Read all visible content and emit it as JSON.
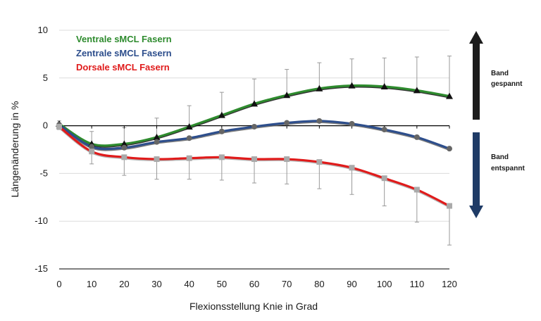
{
  "chart_data": {
    "type": "line",
    "xlabel": "Flexionsstellung Knie in Grad",
    "ylabel": "Längenänderung in %",
    "xlim": [
      0,
      120
    ],
    "ylim": [
      -15,
      10
    ],
    "xticks": [
      0,
      10,
      20,
      30,
      40,
      50,
      60,
      70,
      80,
      90,
      100,
      110,
      120
    ],
    "yticks": [
      10,
      5,
      0,
      -5,
      -10,
      -15
    ],
    "grid": "horizontal",
    "legend_position": "top-left",
    "x": [
      0,
      10,
      20,
      30,
      40,
      50,
      60,
      70,
      80,
      90,
      100,
      110,
      120
    ],
    "series": [
      {
        "name": "Ventrale sMCL Fasern",
        "color": "#2e8b2e",
        "values": [
          0.2,
          -1.9,
          -1.9,
          -1.2,
          -0.1,
          1.1,
          2.3,
          3.2,
          3.9,
          4.2,
          4.1,
          3.7,
          3.1
        ],
        "marker": "triangle",
        "error": [
          0.3,
          1.3,
          1.7,
          2.0,
          2.2,
          2.4,
          2.6,
          2.7,
          2.7,
          2.8,
          3.0,
          3.5,
          4.2
        ]
      },
      {
        "name": "Zentrale sMCL Fasern",
        "color": "#2d4e8c",
        "values": [
          0.1,
          -2.2,
          -2.3,
          -1.7,
          -1.3,
          -0.6,
          -0.1,
          0.3,
          0.5,
          0.2,
          -0.4,
          -1.2,
          -2.4
        ],
        "marker": "circle"
      },
      {
        "name": "Dorsale sMCL Fasern",
        "color": "#e01b1b",
        "values": [
          -0.1,
          -2.7,
          -3.3,
          -3.5,
          -3.4,
          -3.3,
          -3.5,
          -3.5,
          -3.8,
          -4.4,
          -5.5,
          -6.7,
          -8.4
        ],
        "marker": "square",
        "error": [
          0.3,
          1.3,
          1.9,
          2.1,
          2.2,
          2.4,
          2.5,
          2.6,
          2.8,
          2.8,
          2.9,
          3.4,
          4.1
        ]
      }
    ],
    "annotations": {
      "up_label_line1": "Band",
      "up_label_line2": "gespannt",
      "down_label_line1": "Band",
      "down_label_line2": "entspannt"
    }
  },
  "colors": {
    "up_arrow": "#1c1c1c",
    "down_arrow": "#1f3b66",
    "marker_black": "#111111",
    "marker_circle": "#666666",
    "marker_square": "#aaaaaa",
    "error_bar": "#999999",
    "grid": "#dcdcdc"
  }
}
